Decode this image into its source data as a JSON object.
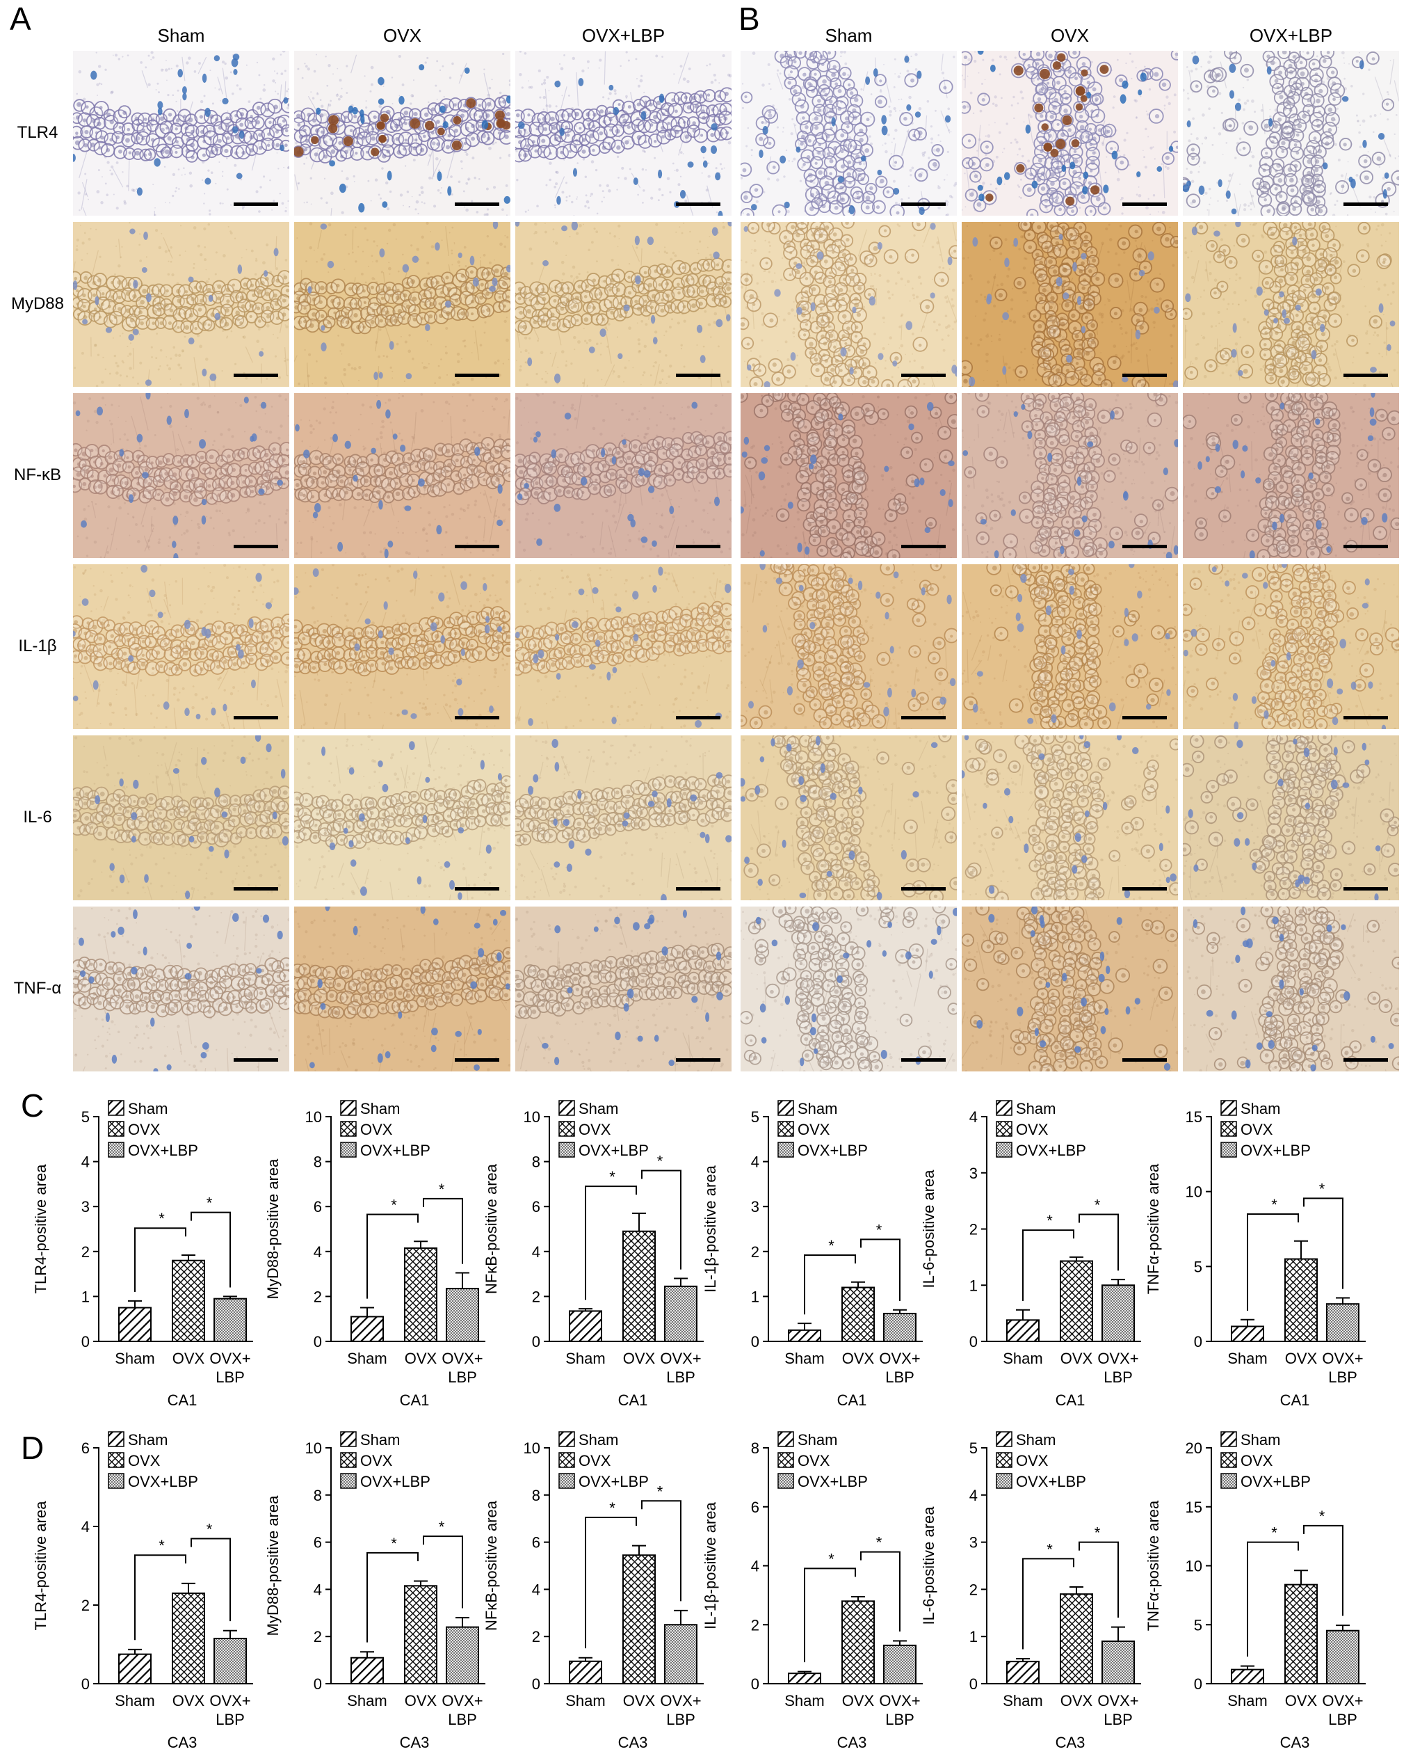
{
  "figure": {
    "panel_labels": {
      "a": "A",
      "b": "B",
      "c": "C",
      "d": "D"
    }
  },
  "histology": {
    "columns": [
      "Sham",
      "OVX",
      "OVX+LBP"
    ],
    "rows": [
      {
        "label": "TLR4",
        "tiles": [
          {
            "bg": "#f6f4f6",
            "cell": "#7c76aa",
            "dot": "#3e72b8"
          },
          {
            "bg": "#f5f2f2",
            "cell": "#7c76aa",
            "dot": "#2f6fb8",
            "accent": "#8a4a26"
          },
          {
            "bg": "#f6f4f6",
            "cell": "#7c76aa",
            "dot": "#3e72b8"
          },
          {
            "bg": "#f6f5f7",
            "cell": "#8a86b4",
            "dot": "#3e72b8"
          },
          {
            "bg": "#f6eeee",
            "cell": "#8a86b4",
            "dot": "#2f6fb8",
            "accent": "#8a4a26"
          },
          {
            "bg": "#f6f5f5",
            "cell": "#8e8aa8",
            "dot": "#3e72b8"
          }
        ]
      },
      {
        "label": "MyD88",
        "tiles": [
          {
            "bg": "#ecd6ad",
            "cell": "#b8955f",
            "dot": "#7f8fbf"
          },
          {
            "bg": "#e6c890",
            "cell": "#b08650",
            "dot": "#7f8fbf"
          },
          {
            "bg": "#ebd4a8",
            "cell": "#b8955f",
            "dot": "#7f8fbf"
          },
          {
            "bg": "#efdcb6",
            "cell": "#bd9a68",
            "dot": "#8a98c4"
          },
          {
            "bg": "#d9a966",
            "cell": "#a8743c",
            "dot": "#7f8fbf"
          },
          {
            "bg": "#e9d2a4",
            "cell": "#b8955f",
            "dot": "#7f8fbf"
          }
        ]
      },
      {
        "label": "NF-κB",
        "tiles": [
          {
            "bg": "#dcbaa6",
            "cell": "#a98276",
            "dot": "#5f7fc0"
          },
          {
            "bg": "#dfb89a",
            "cell": "#a88068",
            "dot": "#5f7fc0"
          },
          {
            "bg": "#d6b3a5",
            "cell": "#a3807a",
            "dot": "#5f7fc0"
          },
          {
            "bg": "#cfa392",
            "cell": "#9a7266",
            "dot": "#5f7fc0"
          },
          {
            "bg": "#d8b8a8",
            "cell": "#a5837a",
            "dot": "#5f7fc0"
          },
          {
            "bg": "#d4ae9e",
            "cell": "#9f7c72",
            "dot": "#5f7fc0"
          }
        ]
      },
      {
        "label": "IL-1β",
        "tiles": [
          {
            "bg": "#ebd4a8",
            "cell": "#c19560",
            "dot": "#7f8fbf"
          },
          {
            "bg": "#e6c898",
            "cell": "#b98a52",
            "dot": "#7f8fbf"
          },
          {
            "bg": "#e8d0a2",
            "cell": "#c19560",
            "dot": "#7f8fbf"
          },
          {
            "bg": "#e5c494",
            "cell": "#bc8e58",
            "dot": "#7f8fbf"
          },
          {
            "bg": "#e4c18c",
            "cell": "#b5864e",
            "dot": "#7f8fbf"
          },
          {
            "bg": "#e6cc9c",
            "cell": "#bd925c",
            "dot": "#7f8fbf"
          }
        ]
      },
      {
        "label": "IL-6",
        "tiles": [
          {
            "bg": "#e4cfa2",
            "cell": "#b79b74",
            "dot": "#6f86c2"
          },
          {
            "bg": "#ebdcb8",
            "cell": "#b59b78",
            "dot": "#6f86c2"
          },
          {
            "bg": "#e9d7b2",
            "cell": "#b59b78",
            "dot": "#6f86c2"
          },
          {
            "bg": "#e8d2a6",
            "cell": "#b79b74",
            "dot": "#6f86c2"
          },
          {
            "bg": "#ead4aa",
            "cell": "#b79b74",
            "dot": "#6f86c2"
          },
          {
            "bg": "#e3cfa8",
            "cell": "#ad9478",
            "dot": "#6f86c2"
          }
        ]
      },
      {
        "label": "TNF-α",
        "tiles": [
          {
            "bg": "#e6dacc",
            "cell": "#aa8f7a",
            "dot": "#5d7ec2"
          },
          {
            "bg": "#e0bc8e",
            "cell": "#ae8458",
            "dot": "#5d7ec2"
          },
          {
            "bg": "#e2cdb6",
            "cell": "#a88e78",
            "dot": "#5d7ec2"
          },
          {
            "bg": "#eae2d8",
            "cell": "#a8988c",
            "dot": "#5d7ec2"
          },
          {
            "bg": "#dfbc90",
            "cell": "#ad8458",
            "dot": "#5d7ec2"
          },
          {
            "bg": "#e3d2bc",
            "cell": "#a88e78",
            "dot": "#5d7ec2"
          }
        ]
      }
    ]
  },
  "chart_data": [
    {
      "type": "bar",
      "categories": [
        "Sham",
        "OVX",
        "OVX+LBP"
      ],
      "legend": [
        "Sham",
        "OVX",
        "OVX+LBP"
      ],
      "values": [
        0.75,
        1.8,
        0.95
      ],
      "errors": [
        0.15,
        0.12,
        0.05
      ],
      "ylabel": "TLR4-positive area",
      "xlabel": "CA1",
      "ylim": [
        0,
        5
      ],
      "yticks": [
        0,
        1,
        2,
        3,
        4,
        5
      ],
      "annotations": [
        "*",
        "*"
      ],
      "grid": false
    },
    {
      "type": "bar",
      "categories": [
        "Sham",
        "OVX",
        "OVX+LBP"
      ],
      "legend": [
        "Sham",
        "OVX",
        "OVX+LBP"
      ],
      "values": [
        1.1,
        4.15,
        2.35
      ],
      "errors": [
        0.4,
        0.3,
        0.7
      ],
      "ylabel": "MyD88-positive area",
      "xlabel": "CA1",
      "ylim": [
        0,
        10
      ],
      "yticks": [
        0,
        2,
        4,
        6,
        8,
        10
      ],
      "annotations": [
        "*",
        "*"
      ],
      "grid": false
    },
    {
      "type": "bar",
      "categories": [
        "Sham",
        "OVX",
        "OVX+LBP"
      ],
      "legend": [
        "Sham",
        "OVX",
        "OVX+LBP"
      ],
      "values": [
        1.35,
        4.9,
        2.45
      ],
      "errors": [
        0.1,
        0.8,
        0.35
      ],
      "ylabel": "NFκB-positive area",
      "xlabel": "CA1",
      "ylim": [
        0,
        10
      ],
      "yticks": [
        0,
        2,
        4,
        6,
        8,
        10
      ],
      "annotations": [
        "*",
        "*"
      ],
      "grid": false
    },
    {
      "type": "bar",
      "categories": [
        "Sham",
        "OVX",
        "OVX+LBP"
      ],
      "legend": [
        "Sham",
        "OVX",
        "OVX+LBP"
      ],
      "values": [
        0.25,
        1.2,
        0.62
      ],
      "errors": [
        0.15,
        0.12,
        0.08
      ],
      "ylabel": "IL-1β-positive area",
      "xlabel": "CA1",
      "ylim": [
        0,
        5
      ],
      "yticks": [
        0,
        1,
        2,
        3,
        4,
        5
      ],
      "annotations": [
        "*",
        "*"
      ],
      "grid": false
    },
    {
      "type": "bar",
      "categories": [
        "Sham",
        "OVX",
        "OVX+LBP"
      ],
      "legend": [
        "Sham",
        "OVX",
        "OVX+LBP"
      ],
      "values": [
        0.38,
        1.43,
        1.0
      ],
      "errors": [
        0.18,
        0.07,
        0.1
      ],
      "ylabel": "IL-6-positive area",
      "xlabel": "CA1",
      "ylim": [
        0,
        4
      ],
      "yticks": [
        0,
        1,
        2,
        3,
        4
      ],
      "annotations": [
        "*",
        "*"
      ],
      "grid": false
    },
    {
      "type": "bar",
      "categories": [
        "Sham",
        "OVX",
        "OVX+LBP"
      ],
      "legend": [
        "Sham",
        "OVX",
        "OVX+LBP"
      ],
      "values": [
        1.0,
        5.5,
        2.5
      ],
      "errors": [
        0.45,
        1.2,
        0.4
      ],
      "ylabel": "TNFα-positive area",
      "xlabel": "CA1",
      "ylim": [
        0,
        15
      ],
      "yticks": [
        0,
        5,
        10,
        15
      ],
      "annotations": [
        "*",
        "*"
      ],
      "grid": false
    },
    {
      "type": "bar",
      "categories": [
        "Sham",
        "OVX",
        "OVX+LBP"
      ],
      "legend": [
        "Sham",
        "OVX",
        "OVX+LBP"
      ],
      "values": [
        0.75,
        2.3,
        1.15
      ],
      "errors": [
        0.12,
        0.25,
        0.2
      ],
      "ylabel": "TLR4-positive area",
      "xlabel": "CA3",
      "ylim": [
        0,
        6
      ],
      "yticks": [
        0,
        2,
        4,
        6
      ],
      "annotations": [
        "*",
        "*"
      ],
      "grid": false
    },
    {
      "type": "bar",
      "categories": [
        "Sham",
        "OVX",
        "OVX+LBP"
      ],
      "legend": [
        "Sham",
        "OVX",
        "OVX+LBP"
      ],
      "values": [
        1.1,
        4.15,
        2.4
      ],
      "errors": [
        0.25,
        0.2,
        0.4
      ],
      "ylabel": "MyD88-positive area",
      "xlabel": "CA3",
      "ylim": [
        0,
        10
      ],
      "yticks": [
        0,
        2,
        4,
        6,
        8,
        10
      ],
      "annotations": [
        "*",
        "*"
      ],
      "grid": false
    },
    {
      "type": "bar",
      "categories": [
        "Sham",
        "OVX",
        "OVX+LBP"
      ],
      "legend": [
        "Sham",
        "OVX",
        "OVX+LBP"
      ],
      "values": [
        0.95,
        5.45,
        2.5
      ],
      "errors": [
        0.15,
        0.4,
        0.6
      ],
      "ylabel": "NFκB-positive area",
      "xlabel": "CA3",
      "ylim": [
        0,
        10
      ],
      "yticks": [
        0,
        2,
        4,
        6,
        8,
        10
      ],
      "annotations": [
        "*",
        "*"
      ],
      "grid": false
    },
    {
      "type": "bar",
      "categories": [
        "Sham",
        "OVX",
        "OVX+LBP"
      ],
      "legend": [
        "Sham",
        "OVX",
        "OVX+LBP"
      ],
      "values": [
        0.35,
        2.8,
        1.3
      ],
      "errors": [
        0.06,
        0.15,
        0.15
      ],
      "ylabel": "IL-1β-positive area",
      "xlabel": "CA3",
      "ylim": [
        0,
        8
      ],
      "yticks": [
        0,
        2,
        4,
        6,
        8
      ],
      "annotations": [
        "*",
        "*"
      ],
      "grid": false
    },
    {
      "type": "bar",
      "categories": [
        "Sham",
        "OVX",
        "OVX+LBP"
      ],
      "legend": [
        "Sham",
        "OVX",
        "OVX+LBP"
      ],
      "values": [
        0.47,
        1.9,
        0.9
      ],
      "errors": [
        0.06,
        0.15,
        0.3
      ],
      "ylabel": "IL-6-positive area",
      "xlabel": "CA3",
      "ylim": [
        0,
        5
      ],
      "yticks": [
        0,
        1,
        2,
        3,
        4,
        5
      ],
      "annotations": [
        "*",
        "*"
      ],
      "grid": false
    },
    {
      "type": "bar",
      "categories": [
        "Sham",
        "OVX",
        "OVX+LBP"
      ],
      "legend": [
        "Sham",
        "OVX",
        "OVX+LBP"
      ],
      "values": [
        1.2,
        8.4,
        4.5
      ],
      "errors": [
        0.3,
        1.2,
        0.45
      ],
      "ylabel": "TNFα-positive area",
      "xlabel": "CA3",
      "ylim": [
        0,
        20
      ],
      "yticks": [
        0,
        5,
        10,
        15,
        20
      ],
      "annotations": [
        "*",
        "*"
      ],
      "grid": false
    }
  ]
}
